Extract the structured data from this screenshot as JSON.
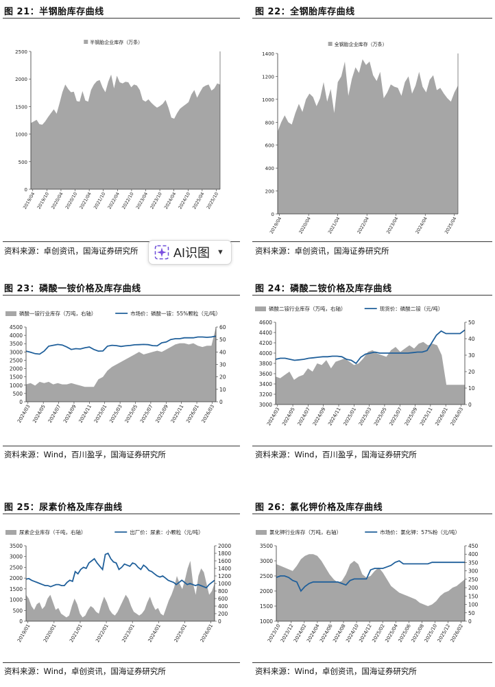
{
  "figures": {
    "f21": {
      "title": "图 21：半钢胎库存曲线",
      "source": "资料来源：卓创资讯，国海证券研究所"
    },
    "f22": {
      "title": "图 22：全钢胎库存曲线",
      "source": "资料来源：卓创资讯，国海证券研究所"
    },
    "f23": {
      "title": "图 23：磷酸一铵价格及库存曲线",
      "source": "资料来源：Wind，百川盈孚，国海证券研究所"
    },
    "f24": {
      "title": "图 24：磷酸二铵价格及库存曲线",
      "source": "资料来源：Wind，百川盈孚，国海证券研究所"
    },
    "f25": {
      "title": "图 25：尿素价格及库存曲线",
      "source": "资料来源：Wind，卓创资讯，国海证券研究所"
    },
    "f26": {
      "title": "图 26：氯化钾价格及库存曲线",
      "source": "资料来源：Wind，卓创资讯，国海证券研究所"
    }
  },
  "ai_button": {
    "label": "AI识图",
    "icon": "sparkle-icon",
    "chevron": "chevron-down-icon"
  },
  "colors": {
    "area": "#a6a6a6",
    "line": "#1f5f9a",
    "rule": "#333333"
  },
  "chart_data": [
    {
      "id": "f21",
      "type": "area",
      "title": "",
      "legend": [
        "半钢胎企业库存（万条）"
      ],
      "ylim": [
        0,
        2500
      ],
      "yticks": [
        0,
        500,
        1000,
        1500,
        2000,
        2500
      ],
      "xticks": [
        "2019/04",
        "2019/10",
        "2020/04",
        "2020/10",
        "2021/04",
        "2021/10",
        "2022/04",
        "2022/10",
        "2023/04",
        "2023/10",
        "2024/04",
        "2024/10",
        "2025/04",
        "2025/10"
      ],
      "series": [
        {
          "name": "半钢胎企业库存（万条）",
          "kind": "area",
          "values": [
            1200,
            1230,
            1260,
            1180,
            1170,
            1230,
            1310,
            1380,
            1450,
            1370,
            1560,
            1760,
            1900,
            1820,
            1760,
            1770,
            1600,
            1590,
            1780,
            1610,
            1590,
            1800,
            1900,
            1960,
            1980,
            1850,
            1760,
            1950,
            2080,
            1830,
            2060,
            1940,
            1920,
            1950,
            1940,
            1850,
            1900,
            1880,
            1800,
            1620,
            1590,
            1630,
            1570,
            1520,
            1480,
            1510,
            1550,
            1620,
            1480,
            1300,
            1280,
            1380,
            1460,
            1500,
            1540,
            1580,
            1720,
            1800,
            1660,
            1760,
            1850,
            1880,
            1900,
            1790,
            1830,
            1920,
            1900
          ]
        }
      ]
    },
    {
      "id": "f22",
      "type": "area",
      "title": "",
      "legend": [
        "全钢胎企业库存（万条）"
      ],
      "ylim": [
        0,
        1400
      ],
      "yticks": [
        0,
        200,
        400,
        600,
        800,
        1000,
        1200,
        1400
      ],
      "xticks": [
        "2019/04",
        "2020/04",
        "2021/04",
        "2022/04",
        "2023/04",
        "2024/04",
        "2025/04"
      ],
      "series": [
        {
          "name": "全钢胎企业库存（万条）",
          "kind": "area",
          "values": [
            720,
            800,
            860,
            800,
            780,
            880,
            960,
            890,
            1000,
            1050,
            1020,
            940,
            1010,
            1150,
            980,
            1090,
            880,
            1150,
            1200,
            1330,
            1030,
            1180,
            1280,
            1230,
            1350,
            1300,
            1330,
            1210,
            1160,
            1240,
            1010,
            1060,
            1130,
            1110,
            1100,
            1030,
            1150,
            1200,
            1050,
            1120,
            1240,
            1110,
            1060,
            1170,
            1210,
            1080,
            1100,
            1050,
            1010,
            980,
            1060,
            1120
          ]
        }
      ]
    },
    {
      "id": "f23",
      "type": "line",
      "title": "",
      "legend": [
        "磷酸一铵行业库存（万吨，右轴）",
        "市场价：磷酸一铵：55%颗粒（元/吨）"
      ],
      "ylim": [
        0,
        4500
      ],
      "yticks": [
        0,
        500,
        1000,
        1500,
        2000,
        2500,
        3000,
        3500,
        4000,
        4500
      ],
      "y2lim": [
        0,
        60
      ],
      "y2ticks": [
        0,
        10,
        20,
        30,
        40,
        50,
        60
      ],
      "xticks": [
        "2024/03",
        "2024/05",
        "2024/07",
        "2024/09",
        "2024/11",
        "2025/01",
        "2025/03",
        "2025/05",
        "2025/07",
        "2025/09",
        "2025/11",
        "2026/01",
        "2026/03"
      ],
      "series": [
        {
          "name": "磷酸一铵行业库存（万吨，右轴）",
          "kind": "area",
          "axis": "y2",
          "values": [
            14,
            15,
            13,
            16,
            15,
            16,
            14,
            15,
            14,
            14,
            15,
            14,
            13,
            12,
            12,
            12,
            18,
            20,
            25,
            28,
            30,
            32,
            34,
            36,
            38,
            40,
            38,
            39,
            40,
            41,
            40,
            42,
            44,
            46,
            47,
            47,
            46,
            47,
            45,
            44,
            45,
            45,
            60
          ]
        },
        {
          "name": "市场价：磷酸一铵：55%颗粒（元/吨）",
          "kind": "line",
          "axis": "y",
          "values": [
            3050,
            2980,
            2900,
            2870,
            3050,
            3350,
            3400,
            3450,
            3420,
            3300,
            3150,
            3200,
            3180,
            3250,
            3300,
            3150,
            3050,
            3060,
            3350,
            3400,
            3380,
            3330,
            3370,
            3390,
            3430,
            3440,
            3450,
            3440,
            3380,
            3370,
            3550,
            3600,
            3750,
            3800,
            3800,
            3850,
            3850,
            3850,
            3900,
            3900,
            3880,
            3900,
            3950
          ]
        }
      ]
    },
    {
      "id": "f24",
      "type": "line",
      "title": "",
      "legend": [
        "磷酸二铵行业库存（万吨，右轴）",
        "现货价：磷酸二铵（元/吨）"
      ],
      "ylim": [
        3000,
        4600
      ],
      "yticks": [
        3000,
        3200,
        3400,
        3600,
        3800,
        4000,
        4200,
        4400,
        4600
      ],
      "y2lim": [
        0,
        50
      ],
      "y2ticks": [
        0,
        10,
        20,
        30,
        40,
        50
      ],
      "xticks": [
        "2024/03",
        "2024/05",
        "2024/07",
        "2024/09",
        "2024/11",
        "2025/01",
        "2025/03",
        "2025/05",
        "2025/07",
        "2025/09",
        "2025/11",
        "2026/01",
        "2026/03"
      ],
      "series": [
        {
          "name": "磷酸二铵行业库存（万吨，右轴）",
          "kind": "area",
          "axis": "y2",
          "values": [
            17,
            16,
            18,
            20,
            15,
            17,
            18,
            22,
            20,
            25,
            24,
            27,
            22,
            26,
            27,
            28,
            26,
            24,
            25,
            28,
            32,
            33,
            31,
            30,
            29,
            33,
            35,
            32,
            34,
            36,
            34,
            37,
            38,
            36,
            37,
            36,
            30,
            12,
            12,
            12,
            12,
            12
          ]
        },
        {
          "name": "现货价：磷酸二铵（元/吨）",
          "kind": "line",
          "axis": "y",
          "values": [
            3880,
            3900,
            3900,
            3880,
            3860,
            3870,
            3880,
            3900,
            3910,
            3920,
            3930,
            3930,
            3940,
            3940,
            3930,
            3880,
            3860,
            3800,
            3920,
            3980,
            4000,
            4020,
            4000,
            4000,
            4000,
            4000,
            4000,
            4000,
            4000,
            4010,
            4020,
            4020,
            4050,
            4200,
            4350,
            4430,
            4380,
            4380,
            4380,
            4380,
            4450
          ]
        }
      ]
    },
    {
      "id": "f25",
      "type": "line",
      "title": "",
      "legend": [
        "尿素企业库存（千吨，右轴）",
        "出厂价：尿素：小颗粒（元/吨）"
      ],
      "ylim": [
        0,
        3500
      ],
      "yticks": [
        0,
        500,
        1000,
        1500,
        2000,
        2500,
        3000,
        3500
      ],
      "y2lim": [
        0,
        2000
      ],
      "y2ticks": [
        0,
        200,
        400,
        600,
        800,
        1000,
        1200,
        1400,
        1600,
        1800,
        2000
      ],
      "xticks": [
        "2019/01",
        "2020/01",
        "2021/01",
        "2022/01",
        "2023/01",
        "2024/01",
        "2025/01",
        "2026/01"
      ],
      "series": [
        {
          "name": "尿素企业库存（千吨，右轴）",
          "kind": "area",
          "axis": "y2",
          "values": [
            700,
            600,
            400,
            300,
            450,
            500,
            320,
            400,
            600,
            700,
            500,
            300,
            350,
            200,
            150,
            100,
            150,
            400,
            600,
            450,
            200,
            100,
            150,
            300,
            400,
            350,
            250,
            200,
            450,
            650,
            500,
            300,
            200,
            150,
            250,
            400,
            550,
            700,
            600,
            400,
            250,
            200,
            150,
            200,
            300,
            500,
            650,
            450,
            300,
            350,
            200,
            150,
            350,
            550,
            700,
            900,
            1200,
            1000,
            850,
            1100,
            1400,
            1600,
            1000,
            700,
            1200,
            1400,
            1300,
            1000,
            700,
            800,
            1000
          ]
        },
        {
          "name": "出厂价：尿素：小颗粒（元/吨）",
          "kind": "line",
          "axis": "y",
          "values": [
            1950,
            1980,
            1900,
            1850,
            1800,
            1750,
            1700,
            1650,
            1650,
            1600,
            1650,
            1700,
            1700,
            1650,
            1650,
            1800,
            1900,
            1850,
            2300,
            2200,
            2400,
            2500,
            2450,
            2700,
            2800,
            2900,
            2700,
            2550,
            2400,
            3100,
            3150,
            2900,
            2750,
            2700,
            2400,
            2500,
            2650,
            2600,
            2550,
            2700,
            2650,
            2500,
            2400,
            2600,
            2500,
            2350,
            2300,
            2200,
            2100,
            2050,
            2100,
            2000,
            1900,
            1850,
            1800,
            1700,
            1800,
            1900,
            1800,
            1700,
            1750,
            1700,
            1650,
            1700,
            1650,
            1600,
            1550,
            1700,
            1800,
            1900
          ]
        }
      ]
    },
    {
      "id": "f26",
      "type": "line",
      "title": "",
      "legend": [
        "氯化钾行业库存（万吨，右轴）",
        "市场价：氯化钾：57%粉（元/吨）"
      ],
      "ylim": [
        1000,
        3500
      ],
      "yticks": [
        1000,
        1500,
        2000,
        2500,
        3000,
        3500
      ],
      "y2lim": [
        0,
        450
      ],
      "y2ticks": [
        0,
        50,
        100,
        150,
        200,
        250,
        300,
        350,
        400,
        450
      ],
      "xticks": [
        "2023/10",
        "2023/12",
        "2024/02",
        "2024/04",
        "2024/06",
        "2024/08",
        "2024/10",
        "2024/12",
        "2025/02",
        "2025/04",
        "2025/06",
        "2025/08",
        "2025/10",
        "2025/12",
        "2026/02"
      ],
      "series": [
        {
          "name": "氯化钾行业库存（万吨，右轴）",
          "kind": "area",
          "axis": "y2",
          "values": [
            340,
            330,
            320,
            310,
            300,
            330,
            370,
            390,
            400,
            400,
            390,
            360,
            320,
            280,
            250,
            230,
            240,
            280,
            340,
            360,
            340,
            280,
            260,
            270,
            300,
            320,
            290,
            250,
            210,
            190,
            170,
            160,
            150,
            140,
            130,
            110,
            100,
            90,
            100,
            120,
            150,
            170,
            180,
            200,
            210,
            230,
            250
          ]
        },
        {
          "name": "市场价：氯化钾：57%粉（元/吨）",
          "kind": "line",
          "axis": "y",
          "values": [
            2450,
            2500,
            2500,
            2450,
            2350,
            2300,
            2000,
            2150,
            2250,
            2300,
            2300,
            2300,
            2300,
            2300,
            2300,
            2300,
            2250,
            2200,
            2350,
            2400,
            2400,
            2400,
            2400,
            2700,
            2750,
            2750,
            2750,
            2800,
            2850,
            2950,
            3000,
            2900,
            2900,
            2900,
            2900,
            2900,
            2900,
            2900,
            2950,
            2950,
            2950,
            2950,
            2950,
            2950,
            2950,
            2950,
            2950
          ]
        }
      ]
    }
  ]
}
